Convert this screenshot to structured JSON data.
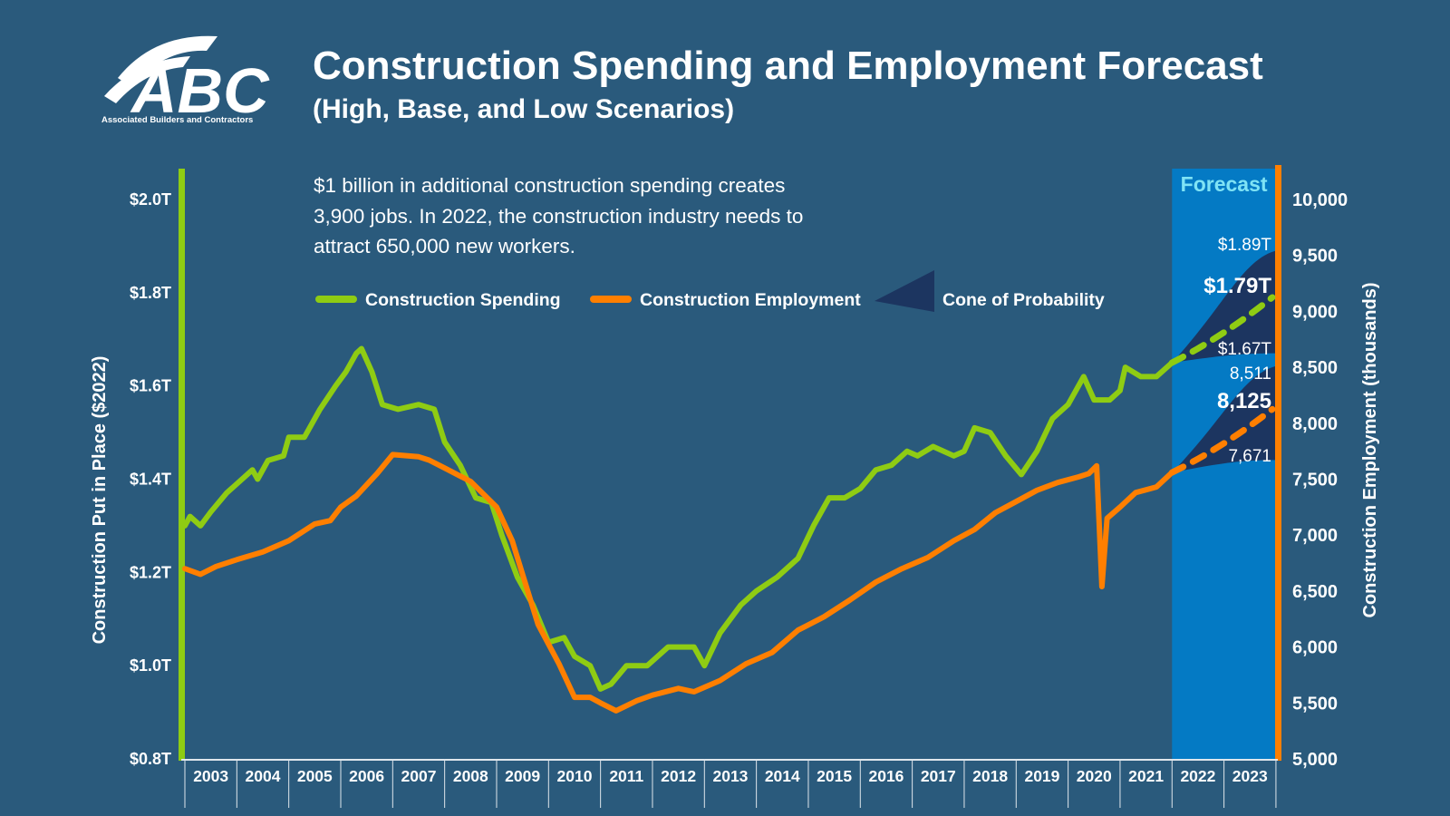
{
  "header": {
    "title": "Construction Spending and Employment Forecast",
    "subtitle": "(High, Base, and Low Scenarios)",
    "logo_text": "ABC",
    "logo_subtext": "Associated Builders and Contractors",
    "note": "$1 billion in additional construction spending creates 3,900 jobs. In 2022, the construction industry needs to attract 650,000 new workers."
  },
  "colors": {
    "background": "#2a5a7c",
    "spending": "#8fcc13",
    "employment": "#ff7f00",
    "forecast_band": "#047ac4",
    "cone": "#1c3560",
    "forecast_label": "#7fe3f5"
  },
  "chart_data": {
    "type": "line",
    "x_axis": {
      "range": [
        2003,
        2024
      ],
      "tick_labels": [
        "2003",
        "2004",
        "2005",
        "2006",
        "2007",
        "2008",
        "2009",
        "2010",
        "2011",
        "2012",
        "2013",
        "2014",
        "2015",
        "2016",
        "2017",
        "2018",
        "2019",
        "2020",
        "2021",
        "2022",
        "2023"
      ]
    },
    "y_left": {
      "label": "Construction Put in Place ($2022)",
      "range": [
        0.8,
        2.0
      ],
      "unit": "trillion USD",
      "tick_labels": [
        "$0.8T",
        "$1.0T",
        "$1.2T",
        "$1.4T",
        "$1.6T",
        "$1.8T",
        "$2.0T"
      ]
    },
    "y_right": {
      "label": "Construction Employment (thousands)",
      "range": [
        5000,
        10000
      ],
      "tick_labels": [
        "5,000",
        "5,500",
        "6,000",
        "6,500",
        "7,000",
        "7,500",
        "8,000",
        "8,500",
        "9,000",
        "9,500",
        "10,000"
      ]
    },
    "grid": false,
    "legend": {
      "position": "top",
      "items": [
        "Construction Spending",
        "Construction Employment",
        "Cone of Probability"
      ]
    },
    "forecast": {
      "label": "Forecast",
      "start": 2022,
      "end": 2024
    },
    "series": [
      {
        "name": "Construction Spending",
        "axis": "left",
        "points": [
          [
            2003.0,
            1.3
          ],
          [
            2003.1,
            1.32
          ],
          [
            2003.3,
            1.3
          ],
          [
            2003.5,
            1.33
          ],
          [
            2003.8,
            1.37
          ],
          [
            2004.2,
            1.41
          ],
          [
            2004.3,
            1.42
          ],
          [
            2004.4,
            1.4
          ],
          [
            2004.6,
            1.44
          ],
          [
            2004.9,
            1.45
          ],
          [
            2005.0,
            1.49
          ],
          [
            2005.3,
            1.49
          ],
          [
            2005.6,
            1.55
          ],
          [
            2005.9,
            1.6
          ],
          [
            2006.1,
            1.63
          ],
          [
            2006.3,
            1.67
          ],
          [
            2006.4,
            1.68
          ],
          [
            2006.6,
            1.63
          ],
          [
            2006.8,
            1.56
          ],
          [
            2007.1,
            1.55
          ],
          [
            2007.5,
            1.56
          ],
          [
            2007.8,
            1.55
          ],
          [
            2008.0,
            1.48
          ],
          [
            2008.3,
            1.43
          ],
          [
            2008.6,
            1.36
          ],
          [
            2008.9,
            1.35
          ],
          [
            2009.1,
            1.28
          ],
          [
            2009.4,
            1.19
          ],
          [
            2009.7,
            1.13
          ],
          [
            2010.0,
            1.05
          ],
          [
            2010.3,
            1.06
          ],
          [
            2010.5,
            1.02
          ],
          [
            2010.8,
            1.0
          ],
          [
            2011.0,
            0.95
          ],
          [
            2011.2,
            0.96
          ],
          [
            2011.5,
            1.0
          ],
          [
            2011.9,
            1.0
          ],
          [
            2012.3,
            1.04
          ],
          [
            2012.8,
            1.04
          ],
          [
            2013.0,
            1.0
          ],
          [
            2013.3,
            1.07
          ],
          [
            2013.7,
            1.13
          ],
          [
            2014.0,
            1.16
          ],
          [
            2014.4,
            1.19
          ],
          [
            2014.8,
            1.23
          ],
          [
            2015.1,
            1.3
          ],
          [
            2015.4,
            1.36
          ],
          [
            2015.7,
            1.36
          ],
          [
            2016.0,
            1.38
          ],
          [
            2016.3,
            1.42
          ],
          [
            2016.6,
            1.43
          ],
          [
            2016.9,
            1.46
          ],
          [
            2017.1,
            1.45
          ],
          [
            2017.4,
            1.47
          ],
          [
            2017.8,
            1.45
          ],
          [
            2018.0,
            1.46
          ],
          [
            2018.2,
            1.51
          ],
          [
            2018.5,
            1.5
          ],
          [
            2018.8,
            1.45
          ],
          [
            2019.1,
            1.41
          ],
          [
            2019.4,
            1.46
          ],
          [
            2019.7,
            1.53
          ],
          [
            2020.0,
            1.56
          ],
          [
            2020.3,
            1.62
          ],
          [
            2020.5,
            1.57
          ],
          [
            2020.8,
            1.57
          ],
          [
            2021.0,
            1.59
          ],
          [
            2021.1,
            1.64
          ],
          [
            2021.4,
            1.62
          ],
          [
            2021.7,
            1.62
          ],
          [
            2022.0,
            1.65
          ]
        ],
        "forecast": {
          "base": 1.79,
          "high": 1.89,
          "low": 1.67,
          "labels": {
            "high": "$1.89T",
            "base": "$1.79T",
            "low": "$1.67T"
          }
        }
      },
      {
        "name": "Construction Employment",
        "axis": "right",
        "points": [
          [
            2003.0,
            6700
          ],
          [
            2003.3,
            6650
          ],
          [
            2003.6,
            6720
          ],
          [
            2004.0,
            6780
          ],
          [
            2004.5,
            6850
          ],
          [
            2005.0,
            6950
          ],
          [
            2005.5,
            7100
          ],
          [
            2005.8,
            7130
          ],
          [
            2006.0,
            7250
          ],
          [
            2006.3,
            7350
          ],
          [
            2006.7,
            7550
          ],
          [
            2007.0,
            7720
          ],
          [
            2007.5,
            7700
          ],
          [
            2007.7,
            7670
          ],
          [
            2008.0,
            7600
          ],
          [
            2008.5,
            7480
          ],
          [
            2009.0,
            7250
          ],
          [
            2009.3,
            6950
          ],
          [
            2009.5,
            6650
          ],
          [
            2009.8,
            6200
          ],
          [
            2010.2,
            5850
          ],
          [
            2010.5,
            5550
          ],
          [
            2010.8,
            5550
          ],
          [
            2011.0,
            5500
          ],
          [
            2011.3,
            5430
          ],
          [
            2011.7,
            5520
          ],
          [
            2012.0,
            5570
          ],
          [
            2012.5,
            5630
          ],
          [
            2012.8,
            5600
          ],
          [
            2013.3,
            5700
          ],
          [
            2013.8,
            5850
          ],
          [
            2014.3,
            5950
          ],
          [
            2014.8,
            6150
          ],
          [
            2015.3,
            6270
          ],
          [
            2015.8,
            6420
          ],
          [
            2016.3,
            6580
          ],
          [
            2016.8,
            6700
          ],
          [
            2017.3,
            6800
          ],
          [
            2017.8,
            6950
          ],
          [
            2018.2,
            7050
          ],
          [
            2018.6,
            7200
          ],
          [
            2019.0,
            7300
          ],
          [
            2019.4,
            7400
          ],
          [
            2019.8,
            7470
          ],
          [
            2020.2,
            7520
          ],
          [
            2020.4,
            7550
          ],
          [
            2020.55,
            7620
          ],
          [
            2020.65,
            6540
          ],
          [
            2020.75,
            7150
          ],
          [
            2021.0,
            7250
          ],
          [
            2021.3,
            7380
          ],
          [
            2021.7,
            7430
          ],
          [
            2022.0,
            7560
          ]
        ],
        "forecast": {
          "base": 8125,
          "high": 8511,
          "low": 7671,
          "labels": {
            "high": "8,511",
            "base": "8,125",
            "low": "7,671"
          }
        }
      }
    ]
  }
}
